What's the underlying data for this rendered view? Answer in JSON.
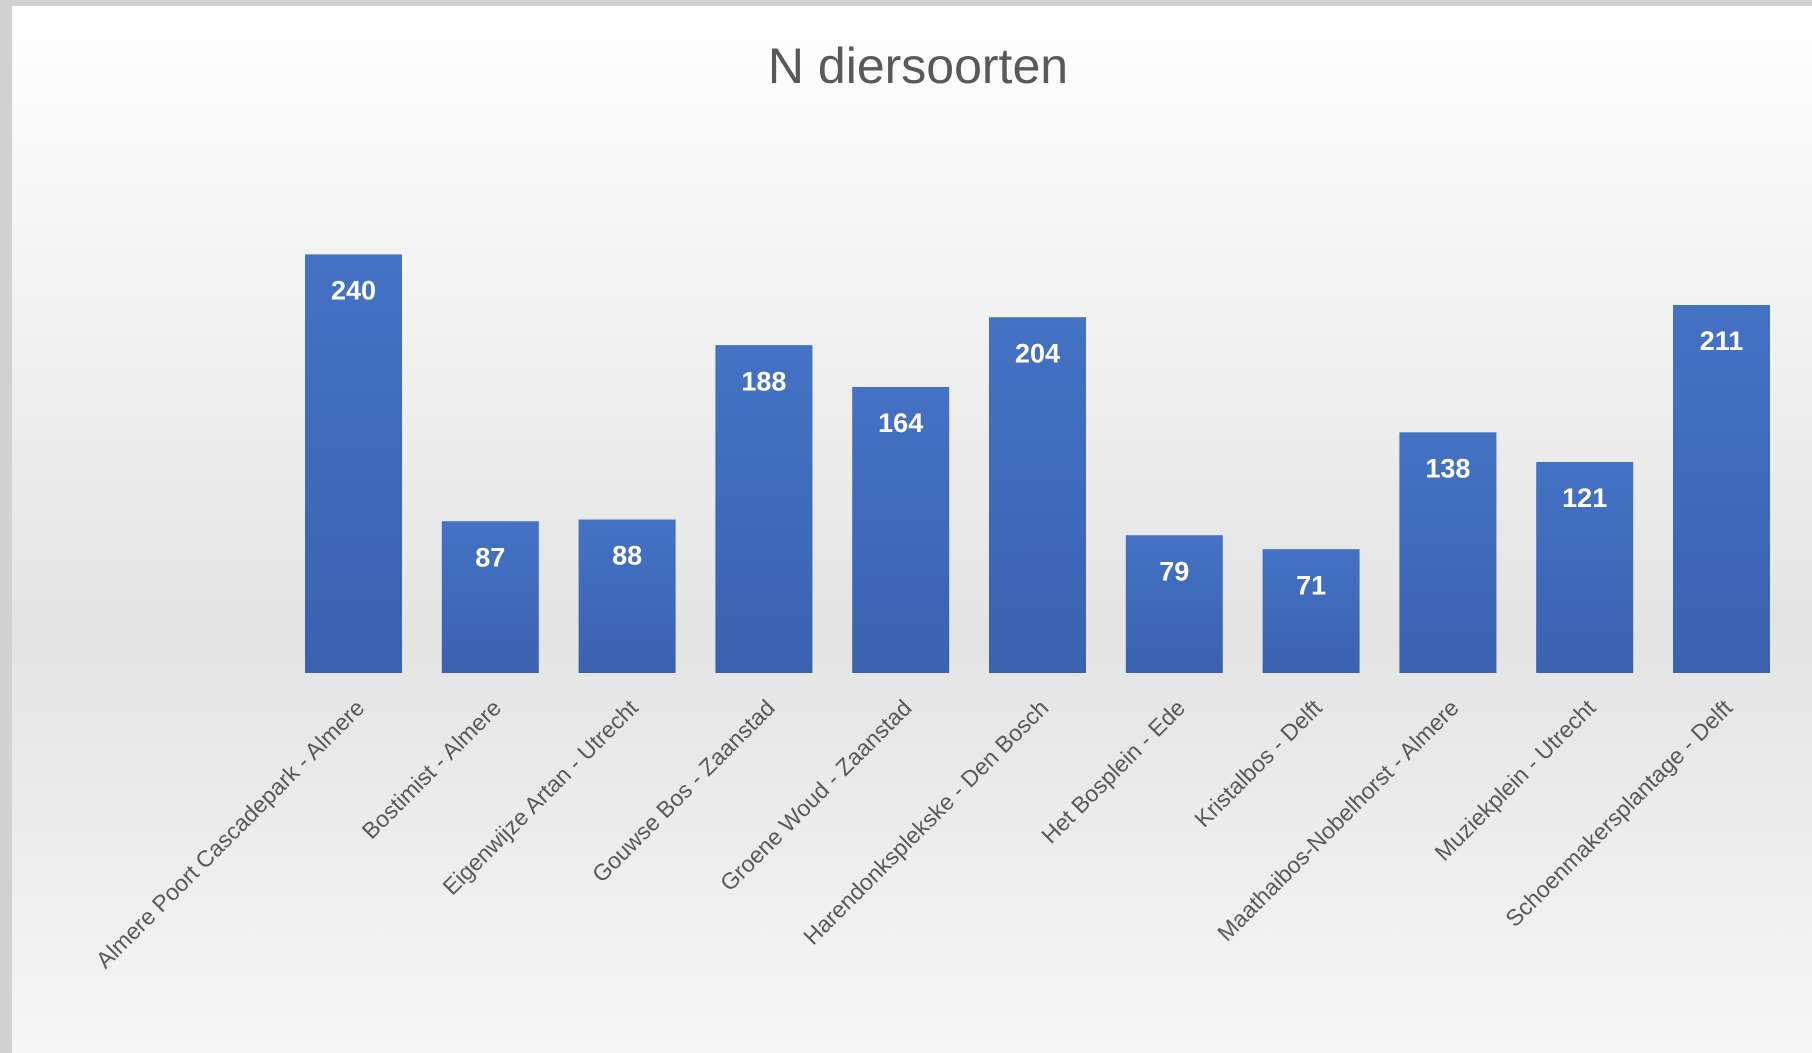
{
  "chart_data": {
    "type": "bar",
    "title": "N diersoorten",
    "categories": [
      "Almere Poort Cascadepark - Almere",
      "Bostimist - Almere",
      "Eigenwijze Artan - Utrecht",
      "Gouwse Bos - Zaanstad",
      "Groene Woud - Zaanstad",
      "Harendonksplekske - Den Bosch",
      "Het Bosplein - Ede",
      "Kristalbos - Delft",
      "Maathaibos-Nobelhorst - Almere",
      "Muziekplein - Utrecht",
      "Schoenmakersplantage - Delft"
    ],
    "values": [
      240,
      87,
      88,
      188,
      164,
      204,
      79,
      71,
      138,
      121,
      211
    ],
    "color": "#4472c4"
  }
}
